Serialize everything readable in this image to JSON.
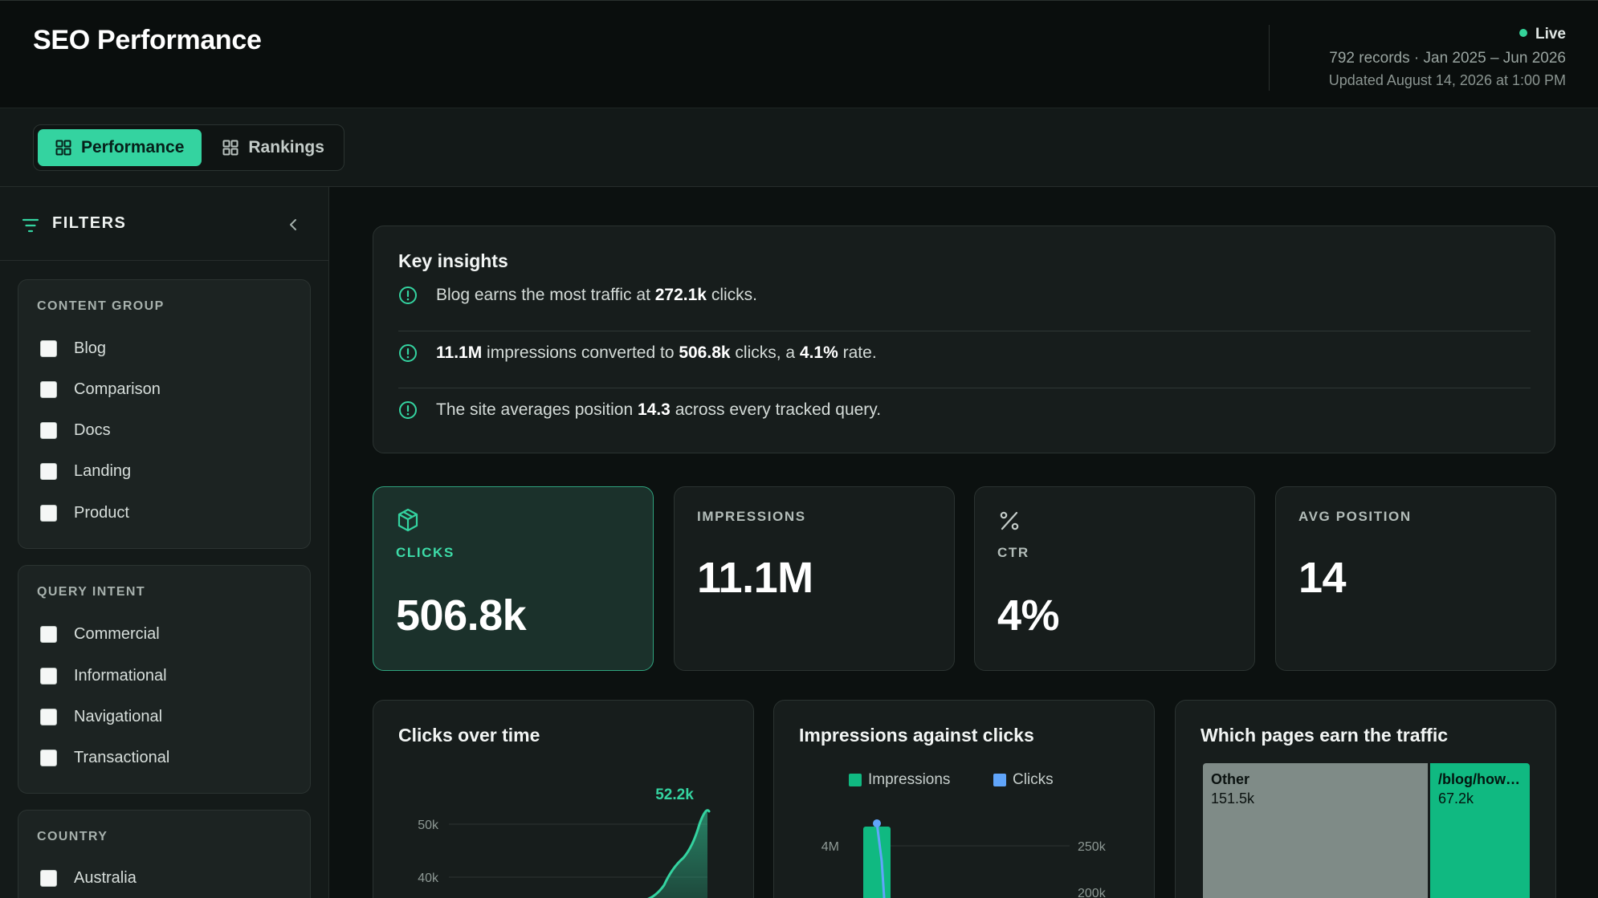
{
  "header": {
    "title": "SEO Performance",
    "status": "Live",
    "records": "792 records · Jan 2025 – Jun 2026",
    "updated": "Updated August 14, 2026 at 1:00 PM",
    "status_color": "#34d399"
  },
  "tabs": [
    {
      "label": "Performance",
      "icon": "grid-icon",
      "active": true
    },
    {
      "label": "Rankings",
      "icon": "grid-icon",
      "active": false
    }
  ],
  "sidebar": {
    "title": "FILTERS",
    "groups": [
      {
        "title": "CONTENT GROUP",
        "options": [
          "Blog",
          "Comparison",
          "Docs",
          "Landing",
          "Product"
        ]
      },
      {
        "title": "QUERY INTENT",
        "options": [
          "Commercial",
          "Informational",
          "Navigational",
          "Transactional"
        ]
      },
      {
        "title": "COUNTRY",
        "options": [
          "Australia"
        ]
      }
    ]
  },
  "insights": {
    "title": "Key insights",
    "items": [
      {
        "p0": "Blog earns the most traffic at ",
        "b0": "272.1k",
        "p1": " clicks."
      },
      {
        "b0": "11.1M",
        "p0": " impressions converted to ",
        "b1": "506.8k",
        "p1": " clicks, a ",
        "b2": "4.1%",
        "p2": " rate."
      },
      {
        "p0": "The site averages position ",
        "b0": "14.3",
        "p1": " across every tracked query."
      }
    ]
  },
  "kpis": [
    {
      "label": "CLICKS",
      "value": "506.8k",
      "icon": "cube-icon",
      "active": true
    },
    {
      "label": "IMPRESSIONS",
      "value": "11.1M"
    },
    {
      "label": "CTR",
      "value": "4%",
      "icon": "percent-icon"
    },
    {
      "label": "AVG POSITION",
      "value": "14"
    }
  ],
  "charts": {
    "clicks_over_time": {
      "title": "Clicks over time",
      "peak_label": "52.2k",
      "y_ticks": [
        "50k",
        "40k"
      ]
    },
    "impressions_vs_clicks": {
      "title": "Impressions against clicks",
      "legend": [
        {
          "name": "Impressions",
          "color": "#10b981"
        },
        {
          "name": "Clicks",
          "color": "#60a5fa"
        }
      ],
      "left_ticks": [
        "4M"
      ],
      "right_ticks": [
        "250k",
        "200k"
      ]
    },
    "pages_treemap": {
      "title": "Which pages earn the traffic",
      "cells": [
        {
          "name": "Other",
          "value": "151.5k",
          "color": "#7f8b87"
        },
        {
          "name": "/blog/how-...",
          "value": "67.2k",
          "color": "#10b981"
        }
      ]
    }
  },
  "chart_data": [
    {
      "type": "area",
      "title": "Clicks over time",
      "y_ticks": [
        50000,
        40000
      ],
      "peak": 52200,
      "peak_label": "52.2k"
    },
    {
      "type": "bar",
      "title": "Impressions against clicks",
      "series": [
        {
          "name": "Impressions",
          "axis": "left"
        },
        {
          "name": "Clicks",
          "axis": "right"
        }
      ],
      "left_ticks": [
        4000000
      ],
      "right_ticks": [
        250000,
        200000
      ]
    },
    {
      "type": "treemap",
      "title": "Which pages earn the traffic",
      "cells": [
        {
          "name": "Other",
          "value": 151500
        },
        {
          "name": "/blog/how-...",
          "value": 67200
        }
      ]
    }
  ]
}
